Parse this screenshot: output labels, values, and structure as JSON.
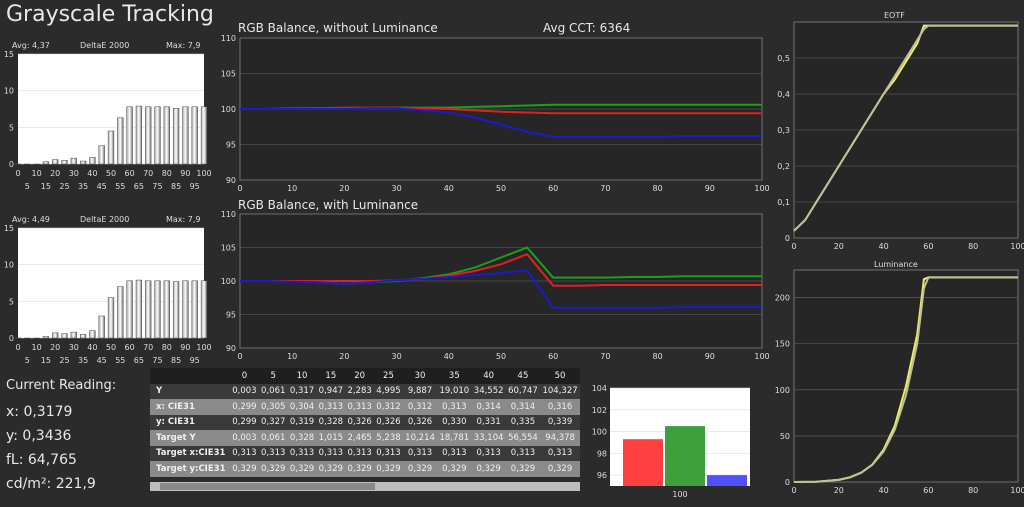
{
  "header": {
    "title": "Grayscale Tracking"
  },
  "de_top": {
    "avg": "Avg: 4,37",
    "name": "DeltaE 2000",
    "max": "Max: 7,9"
  },
  "de_bottom": {
    "avg": "Avg: 4,49",
    "name": "DeltaE 2000",
    "max": "Max: 7,9"
  },
  "rgb_top": {
    "title": "RGB Balance, without Luminance",
    "cct": "Avg CCT: 6364"
  },
  "rgb_bottom": {
    "title": "RGB Balance, with Luminance"
  },
  "eotf": {
    "title": "EOTF"
  },
  "luminance": {
    "title": "Luminance"
  },
  "reading": {
    "title": "Current Reading:",
    "x": "x: 0,3179",
    "y": "y: 0,3436",
    "fl": "fL: 64,765",
    "cd": "cd/m²: 221,9"
  },
  "table": {
    "headers": [
      "",
      "0",
      "5",
      "10",
      "15",
      "20",
      "25",
      "30",
      "35",
      "40",
      "45",
      "50"
    ],
    "rows": [
      {
        "label": "Y",
        "cells": [
          "0,003",
          "0,061",
          "0,317",
          "0,947",
          "2,283",
          "4,995",
          "9,887",
          "19,010",
          "34,552",
          "60,747",
          "104,327"
        ]
      },
      {
        "label": "x: CIE31",
        "cells": [
          "0,299",
          "0,305",
          "0,304",
          "0,313",
          "0,313",
          "0,312",
          "0,312",
          "0,313",
          "0,314",
          "0,314",
          "0,316"
        ]
      },
      {
        "label": "y: CIE31",
        "cells": [
          "0,299",
          "0,327",
          "0,319",
          "0,328",
          "0,326",
          "0,326",
          "0,326",
          "0,330",
          "0,331",
          "0,335",
          "0,339"
        ]
      },
      {
        "label": "Target Y",
        "cells": [
          "0,003",
          "0,061",
          "0,328",
          "1,015",
          "2,465",
          "5,238",
          "10,214",
          "18,781",
          "33,104",
          "56,554",
          "94,378"
        ]
      },
      {
        "label": "Target x:CIE31",
        "cells": [
          "0,313",
          "0,313",
          "0,313",
          "0,313",
          "0,313",
          "0,313",
          "0,313",
          "0,313",
          "0,313",
          "0,313",
          "0,313"
        ]
      },
      {
        "label": "Target y:CIE31",
        "cells": [
          "0,329",
          "0,329",
          "0,329",
          "0,329",
          "0,329",
          "0,329",
          "0,329",
          "0,329",
          "0,329",
          "0,329",
          "0,329"
        ]
      }
    ]
  },
  "chart_data": [
    {
      "id": "de_top",
      "type": "bar",
      "categories": [
        0,
        5,
        10,
        15,
        20,
        25,
        30,
        35,
        40,
        45,
        50,
        55,
        60,
        65,
        70,
        75,
        80,
        85,
        90,
        95,
        100
      ],
      "values": [
        0,
        0,
        0,
        0.3,
        0.6,
        0.5,
        0.8,
        0.4,
        0.9,
        2.5,
        4.5,
        6.3,
        7.8,
        7.9,
        7.8,
        7.8,
        7.8,
        7.6,
        7.8,
        7.8,
        7.8
      ],
      "xticks_top": [
        0,
        10,
        20,
        30,
        40,
        50,
        60,
        70,
        80,
        90,
        100
      ],
      "xticks_bottom": [
        5,
        15,
        25,
        35,
        45,
        55,
        65,
        75,
        85,
        95
      ],
      "yticks": [
        0,
        5,
        10,
        15
      ],
      "ylim": [
        0,
        15
      ]
    },
    {
      "id": "de_bottom",
      "type": "bar",
      "categories": [
        0,
        5,
        10,
        15,
        20,
        25,
        30,
        35,
        40,
        45,
        50,
        55,
        60,
        65,
        70,
        75,
        80,
        85,
        90,
        95,
        100
      ],
      "values": [
        0,
        0,
        0,
        0.2,
        0.7,
        0.6,
        0.8,
        0.5,
        1,
        3,
        5.5,
        7,
        7.8,
        7.9,
        7.8,
        7.8,
        7.8,
        7.7,
        7.8,
        7.8,
        7.8
      ],
      "xticks_top": [
        0,
        10,
        20,
        30,
        40,
        50,
        60,
        70,
        80,
        90,
        100
      ],
      "xticks_bottom": [
        5,
        15,
        25,
        35,
        45,
        55,
        65,
        75,
        85,
        95
      ],
      "yticks": [
        0,
        5,
        10,
        15
      ],
      "ylim": [
        0,
        15
      ]
    },
    {
      "id": "rgb_top",
      "type": "line",
      "xlim": [
        0,
        100
      ],
      "ylim": [
        90,
        110
      ],
      "xticks": [
        0,
        10,
        20,
        30,
        40,
        50,
        60,
        70,
        80,
        90,
        100
      ],
      "yticks": [
        90,
        95,
        100,
        105,
        110
      ],
      "x": [
        0,
        5,
        10,
        15,
        20,
        25,
        30,
        35,
        40,
        45,
        50,
        55,
        60,
        65,
        70,
        75,
        80,
        85,
        90,
        95,
        100
      ],
      "series": [
        {
          "color": "#1aa01a",
          "values": [
            100,
            100,
            100,
            100.1,
            100.1,
            100.1,
            100.2,
            100.2,
            100.2,
            100.3,
            100.4,
            100.5,
            100.6,
            100.6,
            100.6,
            100.6,
            100.6,
            100.6,
            100.6,
            100.6,
            100.6
          ]
        },
        {
          "color": "#e02020",
          "values": [
            100,
            100,
            100.1,
            100.1,
            100.2,
            100.2,
            100.2,
            100.1,
            100,
            99.8,
            99.6,
            99.5,
            99.4,
            99.4,
            99.4,
            99.4,
            99.4,
            99.4,
            99.4,
            99.4,
            99.4
          ]
        },
        {
          "color": "#1a1ad0",
          "values": [
            100,
            100,
            100,
            100,
            100,
            100.1,
            100.1,
            99.8,
            99.5,
            98.8,
            97.8,
            96.8,
            96.1,
            96.1,
            96.1,
            96.1,
            96.1,
            96.2,
            96.2,
            96.2,
            96.2
          ]
        }
      ]
    },
    {
      "id": "rgb_bottom",
      "type": "line",
      "xlim": [
        0,
        100
      ],
      "ylim": [
        90,
        110
      ],
      "xticks": [
        0,
        10,
        20,
        30,
        40,
        50,
        60,
        70,
        80,
        90,
        100
      ],
      "yticks": [
        90,
        95,
        100,
        105,
        110
      ],
      "x": [
        0,
        5,
        10,
        15,
        20,
        25,
        30,
        35,
        40,
        45,
        50,
        55,
        60,
        65,
        70,
        75,
        80,
        85,
        90,
        95,
        100
      ],
      "series": [
        {
          "color": "#1aa01a",
          "values": [
            100,
            100,
            100,
            99.8,
            99.6,
            99.8,
            100,
            100.4,
            101,
            102,
            103.5,
            105,
            100.5,
            100.5,
            100.5,
            100.6,
            100.6,
            100.7,
            100.7,
            100.7,
            100.7
          ]
        },
        {
          "color": "#e02020",
          "values": [
            100,
            100,
            100,
            100,
            100,
            100,
            100.1,
            100.3,
            100.8,
            101.5,
            102.5,
            104,
            99.3,
            99.3,
            99.4,
            99.4,
            99.4,
            99.4,
            99.4,
            99.4,
            99.4
          ]
        },
        {
          "color": "#1a1ad0",
          "values": [
            100,
            100,
            99.9,
            99.8,
            99.6,
            99.8,
            100.1,
            100.3,
            100.6,
            100.9,
            101.2,
            101.6,
            96,
            96,
            96,
            96,
            96,
            96.1,
            96.1,
            96.1,
            96.1
          ]
        }
      ]
    },
    {
      "id": "cur_bar",
      "type": "bar",
      "categories": [
        "R",
        "G",
        "B"
      ],
      "values": [
        99.3,
        100.5,
        96
      ],
      "colors": [
        "#ff4040",
        "#3ca03c",
        "#5050ff"
      ],
      "ylim": [
        95,
        104
      ],
      "yticks": [
        96,
        98,
        100,
        102,
        104
      ],
      "xlabel": "100"
    },
    {
      "id": "eotf",
      "type": "line",
      "xlim": [
        0,
        100
      ],
      "ylim": [
        0,
        0.6
      ],
      "xticks": [
        0,
        20,
        40,
        60,
        80,
        100
      ],
      "yticks": [
        0,
        0.1,
        0.2,
        0.3,
        0.4,
        0.5
      ],
      "ytick_labels": [
        "0",
        "0,1",
        "0,2",
        "0,3",
        "0,4",
        "0,5"
      ],
      "x": [
        0,
        5,
        10,
        15,
        20,
        25,
        30,
        35,
        40,
        45,
        50,
        55,
        58,
        60,
        70,
        80,
        90,
        100
      ],
      "series": [
        {
          "color": "#eeee66",
          "values": [
            0.02,
            0.05,
            0.1,
            0.15,
            0.2,
            0.25,
            0.3,
            0.35,
            0.4,
            0.44,
            0.49,
            0.54,
            0.59,
            0.59,
            0.59,
            0.59,
            0.59,
            0.59
          ]
        },
        {
          "color": "#c0c0a0",
          "values": [
            0.02,
            0.05,
            0.1,
            0.15,
            0.2,
            0.25,
            0.3,
            0.35,
            0.4,
            0.45,
            0.5,
            0.55,
            0.58,
            0.59,
            0.59,
            0.59,
            0.59,
            0.59
          ]
        }
      ]
    },
    {
      "id": "lum",
      "type": "line",
      "xlim": [
        0,
        100
      ],
      "ylim": [
        0,
        230
      ],
      "xticks": [
        0,
        20,
        40,
        60,
        80,
        100
      ],
      "yticks": [
        0,
        50,
        100,
        150,
        200
      ],
      "x": [
        0,
        10,
        20,
        25,
        30,
        35,
        40,
        45,
        50,
        55,
        58,
        60,
        70,
        80,
        90,
        100
      ],
      "series": [
        {
          "color": "#eeee66",
          "values": [
            0,
            0.3,
            2.3,
            5,
            10,
            19,
            35,
            61,
            104,
            160,
            220,
            222,
            222,
            222,
            222,
            222
          ]
        },
        {
          "color": "#c0c0a0",
          "values": [
            0,
            0.3,
            2.5,
            5.2,
            10.2,
            18.8,
            33,
            56.6,
            94.4,
            150,
            210,
            222,
            222,
            222,
            222,
            222
          ]
        }
      ]
    }
  ]
}
